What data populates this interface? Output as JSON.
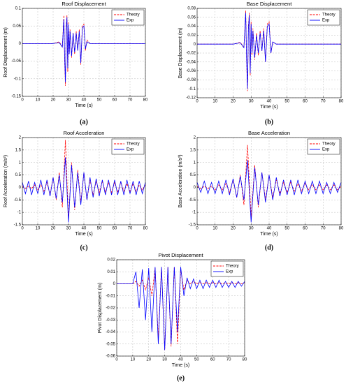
{
  "chart_data": [
    {
      "type": "line",
      "title": "Roof Displacement",
      "caption": "(a)",
      "xlabel": "Time (s)",
      "ylabel": "Roof Displacement (m)",
      "x": [
        0,
        10,
        20,
        24,
        26,
        27,
        27.5,
        28,
        28.5,
        29,
        29.5,
        30,
        30.5,
        31,
        32,
        33,
        34,
        35,
        36,
        37,
        38,
        39,
        40,
        41,
        42,
        44,
        46,
        50,
        60,
        70,
        80
      ],
      "series": [
        {
          "name": "Theory",
          "color": "#ff0000",
          "dash": true,
          "values": [
            0,
            0,
            0,
            0.005,
            -0.01,
            0.08,
            -0.05,
            -0.12,
            0.05,
            0.08,
            -0.08,
            0.06,
            -0.03,
            0.04,
            -0.04,
            0.03,
            -0.03,
            0.035,
            -0.02,
            0.04,
            -0.06,
            0.05,
            0.055,
            -0.02,
            0.01,
            0,
            0,
            0,
            0,
            0,
            0
          ]
        },
        {
          "name": "Exp",
          "color": "#0000ff",
          "dash": false,
          "values": [
            0,
            0,
            0,
            0.003,
            -0.01,
            0.07,
            -0.04,
            -0.11,
            0.04,
            0.075,
            -0.07,
            0.055,
            -0.03,
            0.035,
            -0.035,
            0.03,
            -0.025,
            0.03,
            -0.02,
            0.035,
            -0.055,
            0.045,
            0.05,
            -0.015,
            0.005,
            0,
            0,
            0,
            0,
            0,
            0
          ]
        }
      ],
      "xlim": [
        0,
        80
      ],
      "xticks": [
        0,
        10,
        20,
        30,
        40,
        50,
        60,
        70,
        80
      ],
      "ylim": [
        -0.15,
        0.1
      ],
      "yticks": [
        -0.15,
        -0.1,
        -0.05,
        0,
        0.05,
        0.1
      ],
      "grid": true,
      "legend": "upper right"
    },
    {
      "type": "line",
      "title": "Base Displacement",
      "caption": "(b)",
      "xlabel": "Time (s)",
      "ylabel": "Base Displacement (m)",
      "x": [
        0,
        10,
        20,
        24,
        26,
        27,
        27.5,
        28,
        28.5,
        29,
        29.5,
        30,
        30.5,
        31,
        32,
        33,
        34,
        35,
        36,
        37,
        38,
        39,
        40,
        41,
        42,
        44,
        46,
        50,
        60,
        70,
        80
      ],
      "series": [
        {
          "name": "Theory",
          "color": "#ff0000",
          "dash": true,
          "values": [
            0,
            0,
            0,
            0.004,
            -0.008,
            0.075,
            -0.04,
            -0.105,
            0.04,
            0.07,
            -0.07,
            0.05,
            -0.025,
            0.035,
            -0.035,
            0.025,
            -0.025,
            0.03,
            -0.015,
            0.035,
            -0.04,
            0.045,
            0.05,
            -0.02,
            0.005,
            0,
            0,
            0,
            0,
            0,
            0
          ]
        },
        {
          "name": "Exp",
          "color": "#0000ff",
          "dash": false,
          "values": [
            0,
            0,
            0,
            0.003,
            -0.008,
            0.07,
            -0.035,
            -0.1,
            0.035,
            0.065,
            -0.065,
            0.045,
            -0.02,
            0.03,
            -0.03,
            0.02,
            -0.02,
            0.025,
            -0.015,
            0.03,
            -0.04,
            0.04,
            0.045,
            -0.02,
            0.005,
            0,
            0,
            0,
            0,
            0,
            0
          ]
        }
      ],
      "xlim": [
        0,
        80
      ],
      "xticks": [
        0,
        10,
        20,
        30,
        40,
        50,
        60,
        70,
        80
      ],
      "ylim": [
        -0.12,
        0.08
      ],
      "yticks": [
        -0.12,
        -0.1,
        -0.08,
        -0.06,
        -0.04,
        -0.02,
        0,
        0.02,
        0.04,
        0.06,
        0.08
      ],
      "grid": true,
      "legend": "upper right"
    },
    {
      "type": "line",
      "title": "Roof Acceleration",
      "caption": "(c)",
      "xlabel": "Time (s)",
      "ylabel": "Roof Acceleration (m/s²)",
      "x": [
        0,
        2,
        4,
        6,
        8,
        10,
        12,
        14,
        16,
        18,
        20,
        22,
        24,
        26,
        28,
        30,
        32,
        34,
        36,
        38,
        40,
        42,
        44,
        46,
        48,
        50,
        52,
        54,
        56,
        58,
        60,
        62,
        64,
        66,
        68,
        70,
        72,
        74,
        76,
        78,
        80
      ],
      "series": [
        {
          "name": "Theory",
          "color": "#ff0000",
          "dash": true,
          "values": [
            0.05,
            -0.05,
            0.05,
            -0.05,
            0.1,
            -0.1,
            0.1,
            -0.15,
            0.2,
            -0.3,
            0.4,
            -0.5,
            0.6,
            -0.8,
            1.9,
            -1.3,
            1.0,
            -0.9,
            0.7,
            -0.6,
            0.6,
            -0.5,
            0.3,
            -0.3,
            0.25,
            -0.2,
            0.25,
            -0.2,
            0.2,
            -0.2,
            0.2,
            -0.2,
            0.2,
            -0.15,
            0.15,
            -0.15,
            0.15,
            -0.15,
            0.1,
            -0.1,
            0.1
          ]
        },
        {
          "name": "Exp",
          "color": "#0000ff",
          "dash": false,
          "values": [
            0.2,
            -0.25,
            0.25,
            -0.3,
            0.2,
            -0.25,
            0.3,
            -0.3,
            0.3,
            -0.35,
            0.4,
            -0.45,
            0.5,
            -0.6,
            1.2,
            -1.4,
            0.9,
            -0.8,
            0.6,
            -0.7,
            0.6,
            -0.5,
            0.4,
            -0.4,
            0.35,
            -0.35,
            0.3,
            -0.3,
            0.3,
            -0.3,
            0.3,
            -0.3,
            0.25,
            -0.3,
            0.3,
            -0.25,
            0.25,
            -0.3,
            0.25,
            -0.25,
            0.2
          ]
        }
      ],
      "xlim": [
        0,
        80
      ],
      "xticks": [
        0,
        10,
        20,
        30,
        40,
        50,
        60,
        70,
        80
      ],
      "ylim": [
        -1.5,
        2
      ],
      "yticks": [
        -1.5,
        -1,
        -0.5,
        0,
        0.5,
        1,
        1.5,
        2
      ],
      "grid": true,
      "legend": "upper right"
    },
    {
      "type": "line",
      "title": "Base Acceleration",
      "caption": "(d)",
      "xlabel": "Time (s)",
      "ylabel": "Base Acceleration (m/s²)",
      "x": [
        0,
        2,
        4,
        6,
        8,
        10,
        12,
        14,
        16,
        18,
        20,
        22,
        24,
        26,
        28,
        30,
        32,
        34,
        36,
        38,
        40,
        42,
        44,
        46,
        48,
        50,
        52,
        54,
        56,
        58,
        60,
        62,
        64,
        66,
        68,
        70,
        72,
        74,
        76,
        78,
        80
      ],
      "series": [
        {
          "name": "Theory",
          "color": "#ff0000",
          "dash": true,
          "values": [
            0.05,
            -0.05,
            0.05,
            -0.05,
            0.05,
            -0.1,
            0.1,
            -0.1,
            0.15,
            -0.2,
            0.3,
            -0.4,
            0.5,
            -0.7,
            1.7,
            -1.2,
            0.9,
            -0.8,
            0.6,
            -0.5,
            0.5,
            -0.4,
            0.3,
            -0.25,
            0.2,
            -0.2,
            0.2,
            -0.15,
            0.15,
            -0.15,
            0.15,
            -0.1,
            0.1,
            -0.1,
            0.1,
            -0.1,
            0.1,
            -0.1,
            0.1,
            -0.1,
            0.05
          ]
        },
        {
          "name": "Exp",
          "color": "#0000ff",
          "dash": false,
          "values": [
            0.2,
            -0.2,
            0.25,
            -0.25,
            0.2,
            -0.25,
            0.25,
            -0.25,
            0.3,
            -0.3,
            0.35,
            -0.4,
            0.45,
            -0.5,
            1.1,
            -1.4,
            0.8,
            -0.7,
            0.6,
            -0.6,
            0.5,
            -0.5,
            0.4,
            -0.35,
            0.3,
            -0.3,
            0.3,
            -0.3,
            0.3,
            -0.25,
            0.25,
            -0.25,
            0.25,
            -0.25,
            0.25,
            -0.25,
            0.2,
            -0.25,
            0.2,
            -0.2,
            0.2
          ]
        }
      ],
      "xlim": [
        0,
        80
      ],
      "xticks": [
        0,
        10,
        20,
        30,
        40,
        50,
        60,
        70,
        80
      ],
      "ylim": [
        -1.5,
        2
      ],
      "yticks": [
        -1.5,
        -1,
        -0.5,
        0,
        0.5,
        1,
        1.5,
        2
      ],
      "grid": true,
      "legend": "upper right"
    },
    {
      "type": "line",
      "title": "Pivot Displacement",
      "caption": "(e)",
      "xlabel": "Time (s)",
      "ylabel": "Pivot Displacement (m)",
      "x": [
        0,
        2,
        4,
        6,
        8,
        10,
        12,
        14,
        16,
        18,
        20,
        22,
        24,
        26,
        28,
        30,
        32,
        34,
        36,
        38,
        40,
        42,
        44,
        46,
        48,
        50,
        52,
        54,
        56,
        58,
        60,
        62,
        64,
        66,
        68,
        70,
        72,
        74,
        76,
        78,
        80
      ],
      "series": [
        {
          "name": "Theory",
          "color": "#ff0000",
          "dash": true,
          "values": [
            0,
            0,
            0,
            0,
            0,
            0,
            0.002,
            -0.002,
            0.003,
            -0.005,
            0.005,
            -0.01,
            0.013,
            -0.045,
            0.014,
            -0.055,
            0.014,
            -0.052,
            0.014,
            -0.05,
            0.012,
            -0.005,
            0.003,
            0,
            0.002,
            0,
            0.001,
            0,
            0.001,
            0,
            0.001,
            0,
            0.001,
            0,
            0.001,
            0,
            0.001,
            0,
            0.001,
            0,
            0.001
          ]
        },
        {
          "name": "Exp",
          "color": "#0000ff",
          "dash": false,
          "values": [
            0,
            0,
            0,
            0,
            0,
            0,
            0.01,
            -0.02,
            0.012,
            -0.03,
            0.013,
            -0.04,
            0.014,
            -0.05,
            0.014,
            -0.055,
            0.014,
            -0.05,
            0.014,
            -0.04,
            0.014,
            -0.01,
            0.005,
            -0.004,
            0.004,
            -0.004,
            0.003,
            -0.004,
            0.003,
            -0.003,
            0.003,
            -0.003,
            0.003,
            -0.003,
            0.002,
            -0.003,
            0.002,
            -0.003,
            0.002,
            -0.002,
            0.002
          ]
        }
      ],
      "xlim": [
        0,
        80
      ],
      "xticks": [
        0,
        10,
        20,
        30,
        40,
        50,
        60,
        70,
        80
      ],
      "ylim": [
        -0.06,
        0.02
      ],
      "yticks": [
        -0.06,
        -0.05,
        -0.04,
        -0.03,
        -0.02,
        -0.01,
        0,
        0.01,
        0.02
      ],
      "grid": true,
      "legend": "upper right"
    }
  ]
}
